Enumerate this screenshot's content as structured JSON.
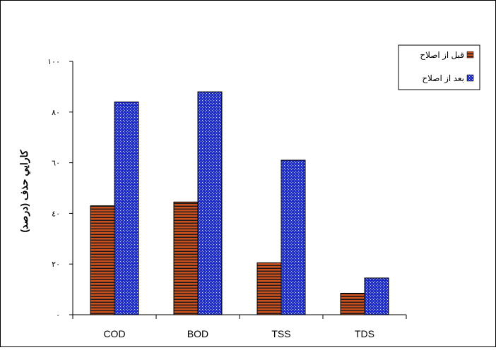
{
  "chart_data": {
    "type": "bar",
    "title": "",
    "xlabel": "",
    "ylabel": "كارايي حذف (درصد)",
    "ylim": [
      0,
      100
    ],
    "yticks": [
      0,
      20,
      40,
      60,
      80,
      100
    ],
    "ytick_labels": [
      "٠",
      "٢٠",
      "٤٠",
      "٦٠",
      "٨٠",
      "١٠٠"
    ],
    "categories": [
      "COD",
      "BOD",
      "TSS",
      "TDS"
    ],
    "series": [
      {
        "name": "قبل از اصلاح",
        "values": [
          43,
          44.5,
          20.5,
          8.5
        ],
        "color": "#c8501e",
        "pattern": "horizontal-stripes"
      },
      {
        "name": "بعد از اصلاح",
        "values": [
          84,
          88,
          61,
          14.5
        ],
        "color": "#1428c8",
        "pattern": "dots"
      }
    ],
    "grid": false,
    "legend_position": "top-right"
  }
}
